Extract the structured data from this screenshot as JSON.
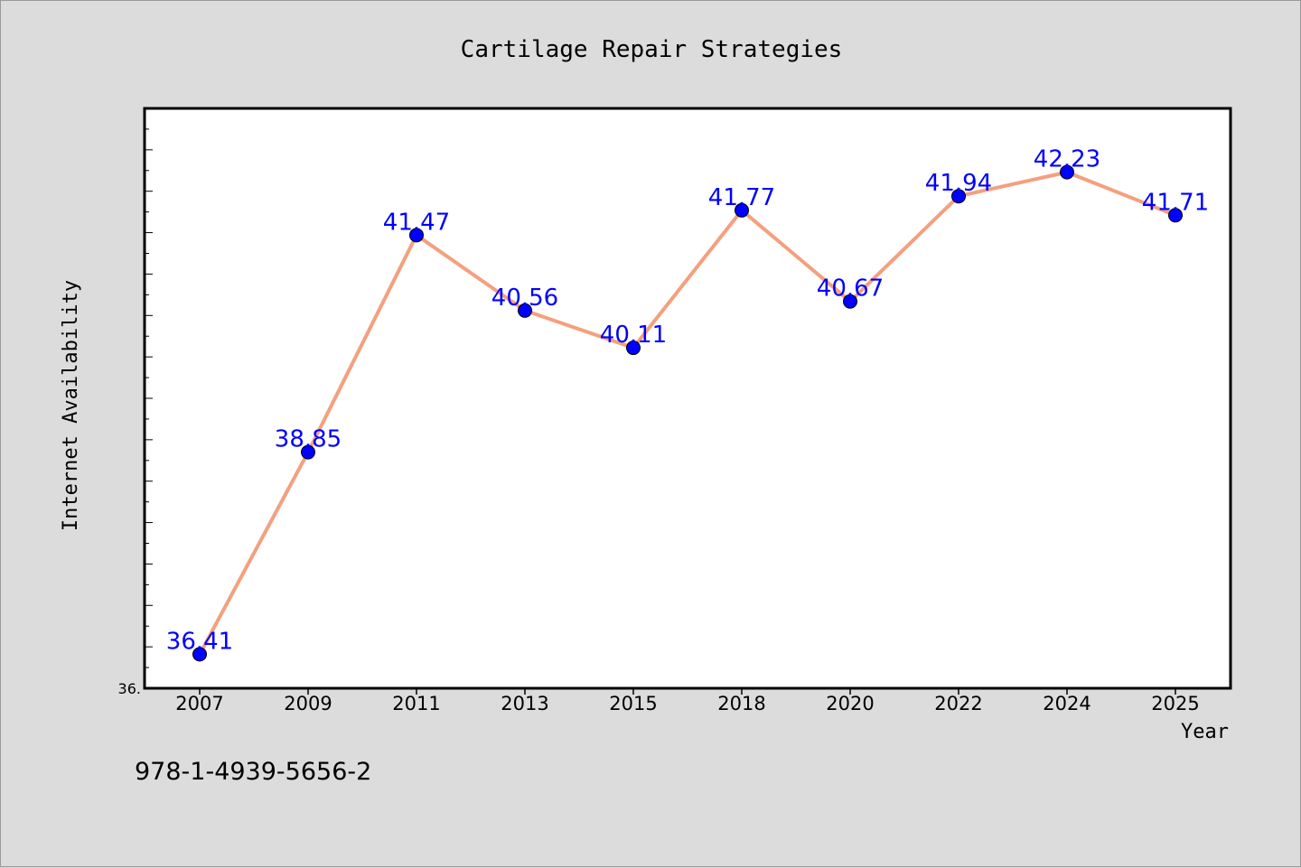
{
  "chart_data": {
    "type": "line",
    "title": "Cartilage Repair Strategies",
    "xlabel": "Year",
    "ylabel": "Internet Availability",
    "categories": [
      "2007",
      "2009",
      "2011",
      "2013",
      "2015",
      "2018",
      "2020",
      "2022",
      "2024",
      "2025"
    ],
    "series": [
      {
        "values": [
          36.41,
          38.85,
          41.47,
          40.56,
          40.11,
          41.77,
          40.67,
          41.94,
          42.23,
          41.71
        ],
        "data_labels": [
          "36.41",
          "38.85",
          "41.47",
          "40.56",
          "40.11",
          "41.77",
          "40.67",
          "41.94",
          "42.23",
          "41.71"
        ],
        "line_color": "#f4a07e",
        "marker_color": "#0000ff",
        "label_color": "#0000ff"
      }
    ],
    "ylim": [
      36.0,
      43.0
    ],
    "y_tick_labels": [
      "36."
    ],
    "grid": false,
    "legend": "none"
  },
  "footer": {
    "isbn": "978-1-4939-5656-2"
  },
  "colors": {
    "background": "#dcdcdc",
    "plot_background": "#ffffff",
    "axis": "#000000"
  }
}
